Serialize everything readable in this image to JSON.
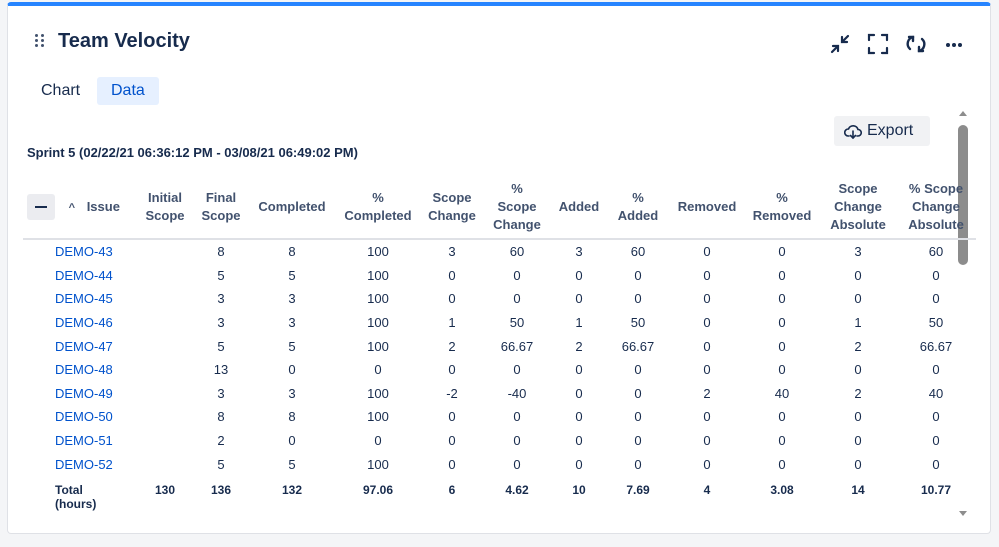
{
  "widget": {
    "title": "Team Velocity",
    "accent_color": "#2684ff",
    "header_icons": [
      "collapse-arrows-icon",
      "fullscreen-icon",
      "refresh-icon",
      "more-icon"
    ]
  },
  "tabs": [
    {
      "label": "Chart",
      "active": false
    },
    {
      "label": "Data",
      "active": true
    }
  ],
  "export": {
    "label": "Export",
    "icon": "cloud-download-icon"
  },
  "sprint": {
    "title": "Sprint 5 (02/22/21 06:36:12 PM - 03/08/21 06:49:02 PM)"
  },
  "table": {
    "sort_indicator": "^",
    "headers": {
      "issue": "Issue",
      "initial_scope": [
        "Initial",
        "Scope"
      ],
      "final_scope": [
        "Final",
        "Scope"
      ],
      "completed": "Completed",
      "pct_completed": [
        "%",
        "Completed"
      ],
      "scope_change": [
        "Scope",
        "Change"
      ],
      "pct_scope_change": [
        "%",
        "Scope",
        "Change"
      ],
      "added": "Added",
      "pct_added": [
        "%",
        "Added"
      ],
      "removed": "Removed",
      "pct_removed": [
        "%",
        "Removed"
      ],
      "scope_change_abs": [
        "Scope",
        "Change",
        "Absolute"
      ],
      "pct_scope_change_abs": [
        "% Scope",
        "Change",
        "Absolute"
      ]
    },
    "rows": [
      [
        "DEMO-43",
        "",
        "8",
        "8",
        "100",
        "3",
        "60",
        "3",
        "60",
        "0",
        "0",
        "3",
        "60"
      ],
      [
        "DEMO-44",
        "",
        "5",
        "5",
        "100",
        "0",
        "0",
        "0",
        "0",
        "0",
        "0",
        "0",
        "0"
      ],
      [
        "DEMO-45",
        "",
        "3",
        "3",
        "100",
        "0",
        "0",
        "0",
        "0",
        "0",
        "0",
        "0",
        "0"
      ],
      [
        "DEMO-46",
        "",
        "3",
        "3",
        "100",
        "1",
        "50",
        "1",
        "50",
        "0",
        "0",
        "1",
        "50"
      ],
      [
        "DEMO-47",
        "",
        "5",
        "5",
        "100",
        "2",
        "66.67",
        "2",
        "66.67",
        "0",
        "0",
        "2",
        "66.67"
      ],
      [
        "DEMO-48",
        "",
        "13",
        "0",
        "0",
        "0",
        "0",
        "0",
        "0",
        "0",
        "0",
        "0",
        "0"
      ],
      [
        "DEMO-49",
        "",
        "3",
        "3",
        "100",
        "-2",
        "-40",
        "0",
        "0",
        "2",
        "40",
        "2",
        "40"
      ],
      [
        "DEMO-50",
        "",
        "8",
        "8",
        "100",
        "0",
        "0",
        "0",
        "0",
        "0",
        "0",
        "0",
        "0"
      ],
      [
        "DEMO-51",
        "",
        "2",
        "0",
        "0",
        "0",
        "0",
        "0",
        "0",
        "0",
        "0",
        "0",
        "0"
      ],
      [
        "DEMO-52",
        "",
        "5",
        "5",
        "100",
        "0",
        "0",
        "0",
        "0",
        "0",
        "0",
        "0",
        "0"
      ]
    ],
    "total": {
      "label_line1": "Total",
      "label_line2": "(hours)",
      "values": [
        "130",
        "136",
        "132",
        "97.06",
        "6",
        "4.62",
        "10",
        "7.69",
        "4",
        "3.08",
        "14",
        "10.77"
      ]
    }
  }
}
